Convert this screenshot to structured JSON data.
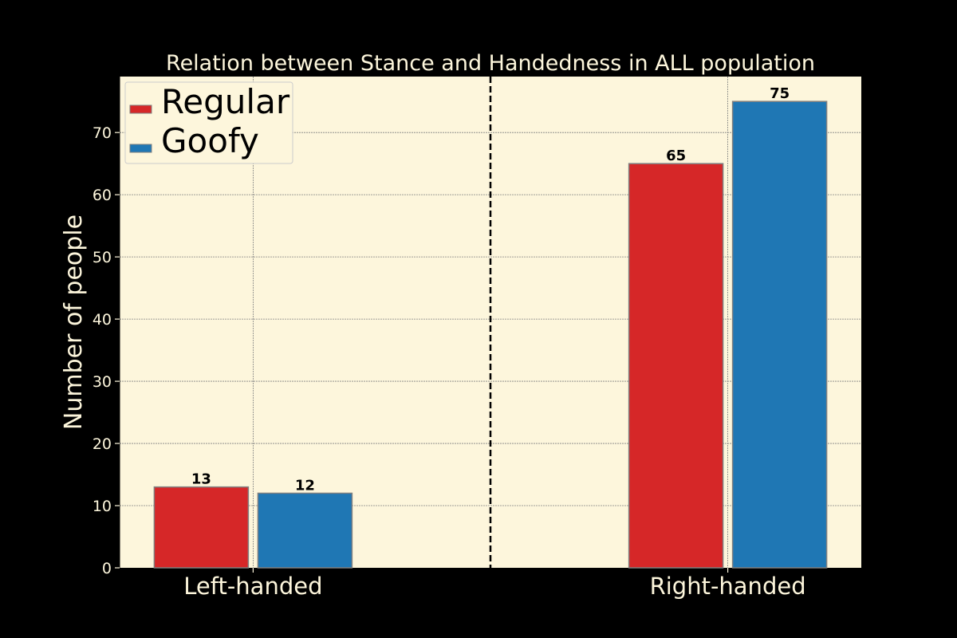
{
  "colors": {
    "background": "#000000",
    "plot_background": "#fdf6dc",
    "regular": "#d62728",
    "goofy": "#1f77b4",
    "text": "#fdf6dc",
    "grid": "#808080",
    "bar_edge": "#808080",
    "value_label": "#000000"
  },
  "chart_data": {
    "type": "bar",
    "title": "Relation between Stance and Handedness in ALL population",
    "xlabel": "",
    "ylabel": "Number of people",
    "categories": [
      "Left-handed",
      "Right-handed"
    ],
    "series": [
      {
        "name": "Regular",
        "values": [
          13,
          65
        ],
        "color": "#d62728"
      },
      {
        "name": "Goofy",
        "values": [
          12,
          75
        ],
        "color": "#1f77b4"
      }
    ],
    "ylim": [
      0,
      79
    ],
    "yticks": [
      0,
      10,
      20,
      30,
      40,
      50,
      60,
      70
    ],
    "grid": true,
    "legend_position": "top-left",
    "data_labels": true,
    "divider": "dashed vertical line between categories"
  }
}
